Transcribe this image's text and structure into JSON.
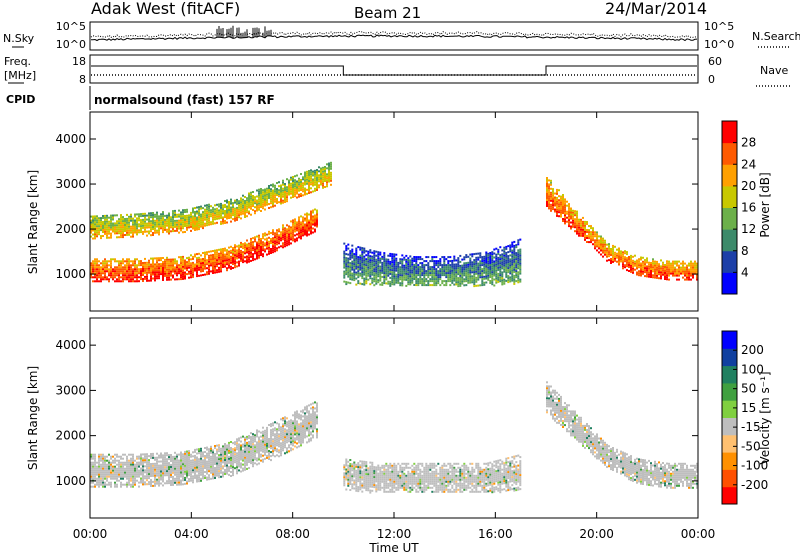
{
  "header": {
    "radar": "Adak West (fitACF)",
    "beam": "Beam 21",
    "date": "24/Mar/2014"
  },
  "strips": {
    "nsky_label": "N.Sky",
    "nsky_ticks": [
      "10^5",
      "10^0"
    ],
    "nsearch_label": "N.Search",
    "nsearch_ticks": [
      "10^5",
      "10^0"
    ],
    "freq_label_1": "Freq.",
    "freq_label_2": "[MHz]",
    "freq_ticks": [
      "18",
      "8"
    ],
    "nave_label": "Nave",
    "nave_ticks": [
      "60",
      "0"
    ],
    "cpid_label": "CPID",
    "cpid_text": "normalsound (fast) 157 RF"
  },
  "colors": {
    "power_scale": [
      "#0000ff",
      "#1c3fa8",
      "#3c8a6a",
      "#6cb04a",
      "#c8c800",
      "#ffa000",
      "#ff5a00",
      "#ff0000"
    ],
    "velocity_scale": [
      "#ff0000",
      "#ff5000",
      "#ff9000",
      "#ffc070",
      "#bebebe",
      "#80d040",
      "#40a040",
      "#208060",
      "#1040a0",
      "#0000ff"
    ],
    "ground_scatter": "#bebebe"
  },
  "chart_data": [
    {
      "type": "heatmap",
      "title": "",
      "xlabel": "Time UT",
      "ylabel": "Slant Range [km]",
      "x_ticks": [
        "00:00",
        "04:00",
        "08:00",
        "12:00",
        "16:00",
        "20:00",
        "00:00"
      ],
      "xlim_hours": [
        0,
        24
      ],
      "y_ticks": [
        "1000",
        "2000",
        "3000",
        "4000"
      ],
      "ylim_km": [
        180,
        4600
      ],
      "colorbar": {
        "label": "Power [dB]",
        "ticks": [
          "28",
          "24",
          "20",
          "16",
          "12",
          "8",
          "4"
        ],
        "range": [
          0,
          32
        ]
      },
      "scatter_regions": [
        {
          "name": "night-band",
          "t_start": 0.0,
          "t_end": 9.0,
          "range_low": [
            850,
            850,
            900,
            1100,
            1500,
            2000
          ],
          "range_high": [
            1350,
            1350,
            1400,
            1600,
            2000,
            2500
          ],
          "power_db": 26
        },
        {
          "name": "upper-band",
          "t_start": 0.0,
          "t_end": 9.5,
          "range_low": [
            1800,
            1850,
            1950,
            2200,
            2600,
            3000
          ],
          "range_high": [
            2300,
            2350,
            2450,
            2700,
            3100,
            3500
          ],
          "power_db": 18
        },
        {
          "name": "day-ground",
          "t_start": 10.0,
          "t_end": 17.0,
          "range_low": [
            800,
            750,
            750,
            750,
            750,
            800
          ],
          "range_high": [
            1700,
            1500,
            1400,
            1400,
            1500,
            1800
          ],
          "power_db": 9
        },
        {
          "name": "evening-band",
          "t_start": 18.0,
          "t_end": 24.0,
          "range_low": [
            2500,
            1900,
            1300,
            1000,
            900,
            900
          ],
          "range_high": [
            3200,
            2400,
            1700,
            1400,
            1300,
            1300
          ],
          "power_db": 24
        }
      ]
    },
    {
      "type": "heatmap",
      "title": "",
      "xlabel": "Time UT",
      "ylabel": "Slant Range [km]",
      "x_ticks": [
        "00:00",
        "04:00",
        "08:00",
        "12:00",
        "16:00",
        "20:00",
        "00:00"
      ],
      "xlim_hours": [
        0,
        24
      ],
      "y_ticks": [
        "1000",
        "2000",
        "3000",
        "4000"
      ],
      "ylim_km": [
        180,
        4600
      ],
      "colorbar": {
        "label": "Velocity [m s⁻¹]",
        "ticks": [
          "200",
          "100",
          "50",
          "15",
          "-15",
          "-50",
          "-100",
          "-200"
        ],
        "range": [
          -250,
          250
        ]
      },
      "scatter_regions": [
        {
          "name": "night-ground",
          "t_start": 0.0,
          "t_end": 9.0,
          "range_low": [
            850,
            850,
            900,
            1100,
            1500,
            2000
          ],
          "range_high": [
            1600,
            1600,
            1650,
            1850,
            2300,
            2800
          ],
          "velocity": 0
        },
        {
          "name": "day-ground",
          "t_start": 10.0,
          "t_end": 17.0,
          "range_low": [
            800,
            750,
            750,
            750,
            750,
            800
          ],
          "range_high": [
            1500,
            1400,
            1400,
            1400,
            1400,
            1600
          ],
          "velocity": 0
        },
        {
          "name": "evening-ground",
          "t_start": 18.0,
          "t_end": 24.0,
          "range_low": [
            2500,
            1900,
            1300,
            950,
            850,
            850
          ],
          "range_high": [
            3200,
            2500,
            1800,
            1500,
            1400,
            1400
          ],
          "velocity": 0
        }
      ]
    }
  ]
}
